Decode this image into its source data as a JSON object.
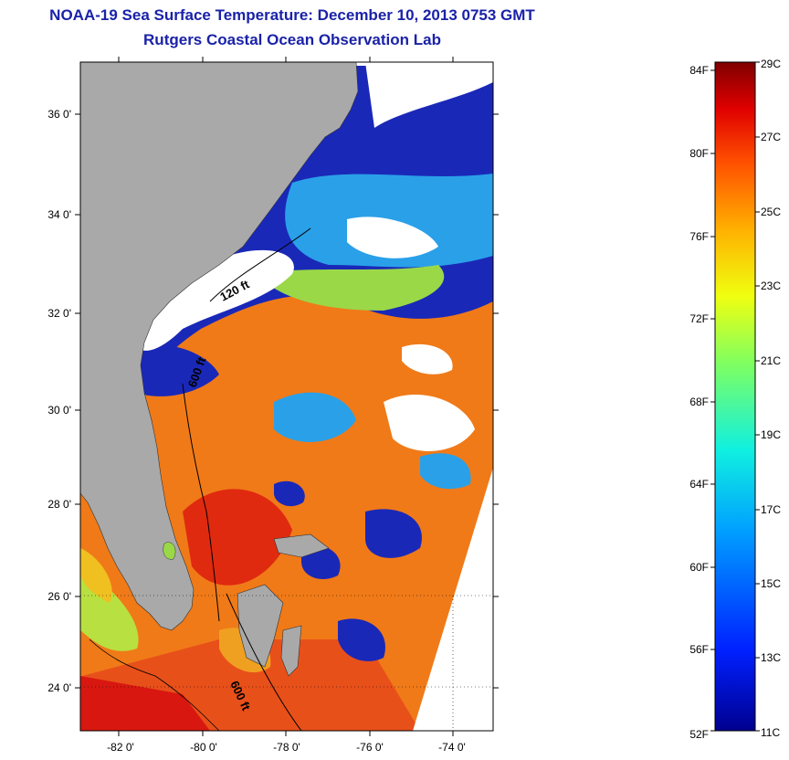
{
  "title": {
    "line1": "NOAA-19 Sea Surface Temperature:  December 10, 2013 0753 GMT",
    "line2": "Rutgers Coastal Ocean Observation Lab"
  },
  "map": {
    "lat_ticks": [
      "36 0'",
      "34 0'",
      "32 0'",
      "30 0'",
      "28 0'",
      "26 0'",
      "24 0'"
    ],
    "lon_ticks": [
      "-82 0'",
      "-80 0'",
      "-78 0'",
      "-76 0'",
      "-74 0'"
    ],
    "depth_labels": [
      "120 ft",
      "600 ft",
      "600 ft"
    ],
    "colors": {
      "land": "#a9a9a9",
      "cloud": "#ffffff",
      "warm": "#f07a18",
      "hot": "#e02a10",
      "cold": "#1a28b8",
      "cool": "#2aa0e8",
      "mild": "#9ad848"
    }
  },
  "colorbar": {
    "fahrenheit": [
      "84F",
      "80F",
      "76F",
      "72F",
      "68F",
      "64F",
      "60F",
      "56F",
      "52F"
    ],
    "celsius": [
      "29C",
      "27C",
      "25C",
      "23C",
      "21C",
      "19C",
      "17C",
      "15C",
      "13C",
      "11C"
    ],
    "range_c": [
      11,
      29
    ],
    "range_f": [
      52,
      84
    ]
  }
}
